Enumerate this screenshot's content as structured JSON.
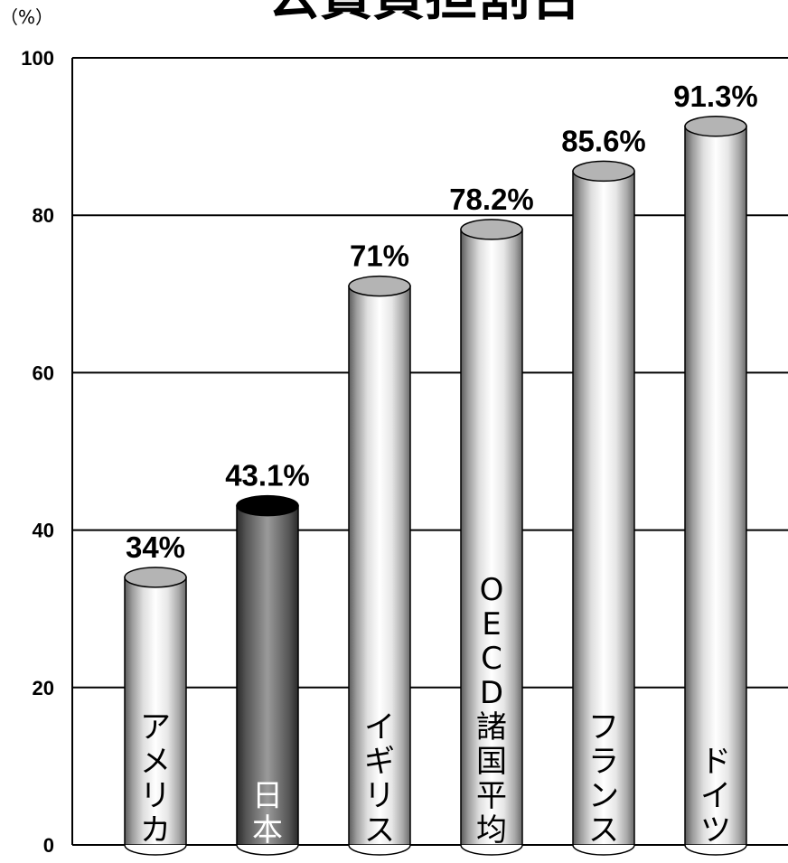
{
  "chart_data": {
    "type": "bar",
    "title": "公費負担割合",
    "y_unit": "（%）",
    "categories": [
      "アメリカ",
      "日本",
      "イギリス",
      "OECD諸国平均",
      "フランス",
      "ドイツ"
    ],
    "values": [
      34,
      43.1,
      71,
      78.2,
      85.6,
      91.3
    ],
    "data_labels": [
      "34%",
      "43.1%",
      "71%",
      "78.2%",
      "85.6%",
      "91.3%"
    ],
    "highlight_category": "日本",
    "ylim": [
      0,
      100
    ],
    "yticks": [
      0,
      20,
      40,
      60,
      80,
      100
    ],
    "grid": true,
    "legend": "none",
    "colors": {
      "bar_light": "#e8e8e8",
      "bar_dark": "#555555",
      "highlight_top": "#000000",
      "cap_light": "#b4b4b4"
    }
  }
}
